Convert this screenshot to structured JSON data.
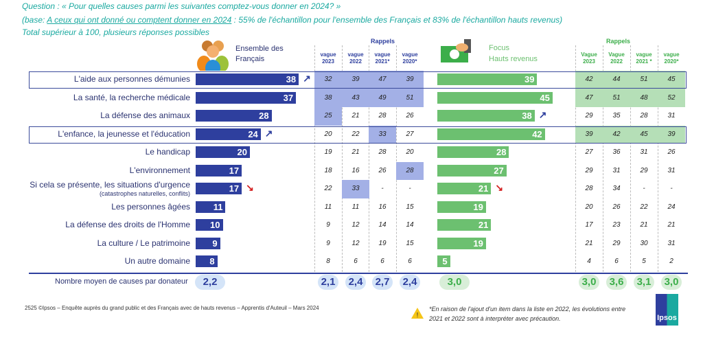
{
  "question": "Question : « Pour quelles causes parmi les suivantes comptez-vous donner en 2024? »",
  "base_prefix": "(base: ",
  "base_underlined": "A ceux qui ont donné ou comptent donner en 2024",
  "base_rest": " : 55% de l'échantillon pour l'ensemble des Français et 83% de l'échantillon hauts revenus)",
  "note": "Total supérieur à 100, plusieurs réponses possibles",
  "group_fr": "Ensemble des Français",
  "group_hr_1": "Focus",
  "group_hr_2": "Hauts revenus",
  "rappels": "Rappels",
  "hdr_fr": [
    "vague 2023",
    "vague 2022",
    "vague 2021*",
    "vague 2020*"
  ],
  "hdr_hr": [
    "Vague 2023",
    "Vague 2022",
    "vague 2021 *",
    "vague 2020*"
  ],
  "colors": {
    "blue": "#2e3f9e",
    "green": "#6cc070",
    "blue_hl": "#a3b0e6",
    "green_hl": "#b5dfb7",
    "teal": "#1aa9a0",
    "red": "#d42020"
  },
  "chart_data": {
    "type": "bar",
    "orientation": "horizontal",
    "categories": [
      "L'aide aux personnes démunies",
      "La santé, la recherche médicale",
      "La défense des animaux",
      "L'enfance, la jeunesse et l'éducation",
      "Le handicap",
      "L'environnement",
      "Si cela se présente, les situations d'urgence",
      "Les personnes âgées",
      "La défense des droits de l'Homme",
      "La culture / Le patrimoine",
      "Un autre domaine"
    ],
    "category_notes": [
      "",
      "",
      "",
      "",
      "",
      "",
      "(catastrophes naturelles, conflits)",
      "",
      "",
      "",
      ""
    ],
    "series": [
      {
        "name": "Ensemble des Français",
        "values": [
          38,
          37,
          28,
          24,
          20,
          17,
          17,
          11,
          10,
          9,
          8
        ],
        "trend": [
          "up",
          "",
          "",
          "up",
          "",
          "",
          "down",
          "",
          "",
          "",
          ""
        ],
        "history": [
          [
            "32",
            "39",
            "47",
            "39"
          ],
          [
            "38",
            "43",
            "49",
            "51"
          ],
          [
            "25",
            "21",
            "28",
            "26"
          ],
          [
            "20",
            "22",
            "33",
            "27"
          ],
          [
            "19",
            "21",
            "28",
            "20"
          ],
          [
            "18",
            "16",
            "26",
            "28"
          ],
          [
            "22",
            "33",
            "-",
            "-"
          ],
          [
            "11",
            "11",
            "16",
            "15"
          ],
          [
            "9",
            "12",
            "14",
            "14"
          ],
          [
            "9",
            "12",
            "19",
            "15"
          ],
          [
            "8",
            "6",
            "6",
            "6"
          ]
        ],
        "highlight": [
          [
            1,
            1,
            1,
            1
          ],
          [
            1,
            1,
            1,
            1
          ],
          [
            1,
            0,
            0,
            0
          ],
          [
            0,
            0,
            1,
            0
          ],
          [
            0,
            0,
            0,
            0
          ],
          [
            0,
            0,
            0,
            1
          ],
          [
            0,
            1,
            0,
            0
          ],
          [
            0,
            0,
            0,
            0
          ],
          [
            0,
            0,
            0,
            0
          ],
          [
            0,
            0,
            0,
            0
          ],
          [
            0,
            0,
            0,
            0
          ]
        ]
      },
      {
        "name": "Focus Hauts revenus",
        "values": [
          39,
          45,
          38,
          42,
          28,
          27,
          21,
          19,
          21,
          19,
          5
        ],
        "trend": [
          "",
          "",
          "up",
          "",
          "",
          "",
          "down",
          "",
          "",
          "",
          ""
        ],
        "history": [
          [
            "42",
            "44",
            "51",
            "45"
          ],
          [
            "47",
            "51",
            "48",
            "52"
          ],
          [
            "29",
            "35",
            "28",
            "31"
          ],
          [
            "39",
            "42",
            "45",
            "39"
          ],
          [
            "27",
            "36",
            "31",
            "26"
          ],
          [
            "29",
            "31",
            "29",
            "31"
          ],
          [
            "28",
            "34",
            "-",
            "-"
          ],
          [
            "20",
            "26",
            "22",
            "24"
          ],
          [
            "17",
            "23",
            "21",
            "21"
          ],
          [
            "21",
            "29",
            "30",
            "31"
          ],
          [
            "4",
            "6",
            "5",
            "2"
          ]
        ],
        "highlight": [
          [
            1,
            1,
            1,
            1
          ],
          [
            1,
            1,
            1,
            1
          ],
          [
            0,
            0,
            0,
            0
          ],
          [
            1,
            1,
            1,
            1
          ],
          [
            0,
            0,
            0,
            0
          ],
          [
            0,
            0,
            0,
            0
          ],
          [
            0,
            0,
            0,
            0
          ],
          [
            0,
            0,
            0,
            0
          ],
          [
            0,
            0,
            0,
            0
          ],
          [
            0,
            0,
            0,
            0
          ],
          [
            0,
            0,
            0,
            0
          ]
        ]
      }
    ],
    "outlined_rows": [
      0,
      3
    ]
  },
  "avg": {
    "label": "Nombre moyen de causes par donateur",
    "fr": "2,2",
    "fr_hist": [
      "2,1",
      "2,4",
      "2,7",
      "2,4"
    ],
    "hr": "3,0",
    "hr_hist": [
      "3,0",
      "3,6",
      "3,1",
      "3,0"
    ]
  },
  "footer": {
    "page": "2525",
    "source": "©Ipsos – Enquête auprès du grand public et des Français avec de hauts revenus – Apprentis d'Auteuil – Mars 2024",
    "caveat": "*En raison de l'ajout d'un item dans la liste en 2022, les évolutions entre 2021 et 2022 sont à interpréter avec précaution.",
    "logo": "Ipsos"
  }
}
